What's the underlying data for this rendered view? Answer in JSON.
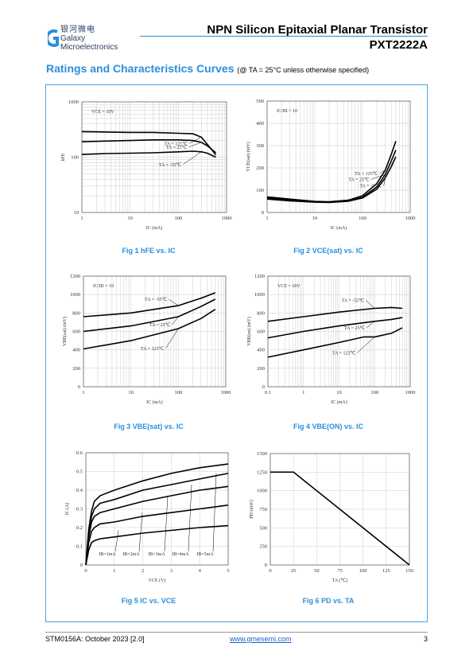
{
  "header": {
    "logo_cn": "银河微电",
    "logo_en1": "Galaxy",
    "logo_en2": "Microelectronics",
    "title": "NPN Silicon Epitaxial Planar Transistor",
    "part": "PXT2222A"
  },
  "section": {
    "title": "Ratings and Characteristics Curves",
    "condition": "(@ TA = 25°C unless otherwise specified)"
  },
  "colors": {
    "accent": "#2a8fdc",
    "frame": "#4aa3df",
    "curve": "#000000"
  },
  "captions": [
    "Fig 1   hFE vs. IC",
    "Fig 2   VCE(sat) vs. IC",
    "Fig 3   VBE(sat) vs. IC",
    "Fig 4   VBE(ON) vs. IC",
    "Fig 5   IC vs. VCE",
    "Fig 6   PD vs. TA"
  ],
  "footer": {
    "doc": "STM0156A: October 2023 [2.0]",
    "url": "www.gmesemi.com",
    "page": "3"
  },
  "chart_data": [
    {
      "type": "line",
      "xscale": "log",
      "yscale": "log",
      "xlim": [
        1,
        1000
      ],
      "ylim": [
        10,
        1000
      ],
      "xticks": [
        "1",
        "10",
        "100",
        "1000"
      ],
      "yticks": [
        "10",
        "100",
        "1000"
      ],
      "xlabel": "IC (mA)",
      "ylabel": "hFE",
      "annotations": [
        "VCE = 10V"
      ],
      "series": [
        {
          "name": "TA = 125℃",
          "x": [
            1,
            3,
            10,
            30,
            100,
            200,
            300,
            400,
            600
          ],
          "y": [
            290,
            285,
            280,
            280,
            270,
            265,
            230,
            170,
            110
          ]
        },
        {
          "name": "TA = 25℃",
          "x": [
            1,
            3,
            10,
            30,
            100,
            200,
            300,
            400,
            600
          ],
          "y": [
            190,
            195,
            200,
            205,
            205,
            200,
            185,
            160,
            120
          ]
        },
        {
          "name": "TA = -55℃",
          "x": [
            1,
            3,
            10,
            30,
            100,
            200,
            300,
            400,
            600
          ],
          "y": [
            112,
            116,
            118,
            120,
            125,
            128,
            125,
            118,
            100
          ]
        }
      ]
    },
    {
      "type": "line",
      "xscale": "log",
      "xlim": [
        1,
        1000
      ],
      "ylim": [
        0,
        500
      ],
      "xticks": [
        "1",
        "10",
        "100",
        "1000"
      ],
      "yticks": [
        "0",
        "100",
        "200",
        "300",
        "400",
        "500"
      ],
      "xlabel": "IC (mA)",
      "ylabel": "VCE(sat) (mV)",
      "annotations": [
        "IC/IB = 10"
      ],
      "series": [
        {
          "name": "TA = 125℃",
          "x": [
            1,
            3,
            10,
            20,
            50,
            100,
            200,
            300,
            400,
            500
          ],
          "y": [
            70,
            60,
            50,
            48,
            55,
            75,
            130,
            190,
            260,
            320
          ]
        },
        {
          "name": "TA = 25℃",
          "x": [
            1,
            3,
            10,
            20,
            50,
            100,
            200,
            300,
            400,
            500
          ],
          "y": [
            65,
            56,
            48,
            46,
            52,
            68,
            115,
            170,
            230,
            280
          ]
        },
        {
          "name": "TA = -55℃",
          "x": [
            1,
            3,
            10,
            20,
            50,
            100,
            200,
            300,
            400,
            500
          ],
          "y": [
            60,
            52,
            46,
            45,
            50,
            65,
            105,
            155,
            205,
            250
          ]
        }
      ]
    },
    {
      "type": "line",
      "xscale": "log",
      "xlim": [
        1,
        1000
      ],
      "ylim": [
        0,
        1200
      ],
      "xticks": [
        "1",
        "10",
        "100",
        "1000"
      ],
      "yticks": [
        "0",
        "200",
        "400",
        "600",
        "800",
        "1000",
        "1200"
      ],
      "xlabel": "IC (mA)",
      "ylabel": "VBE(sat) (mV)",
      "annotations": [
        "IC/IB = 10"
      ],
      "series": [
        {
          "name": "TA = -55℃",
          "x": [
            1,
            10,
            100,
            300,
            600
          ],
          "y": [
            760,
            800,
            880,
            960,
            1020
          ]
        },
        {
          "name": "TA = 25℃",
          "x": [
            1,
            10,
            100,
            300,
            600
          ],
          "y": [
            600,
            660,
            760,
            870,
            950
          ]
        },
        {
          "name": "TA = 125℃",
          "x": [
            1,
            10,
            100,
            300,
            600
          ],
          "y": [
            410,
            500,
            630,
            740,
            840
          ]
        }
      ]
    },
    {
      "type": "line",
      "xscale": "log",
      "xlim": [
        0.1,
        1000
      ],
      "ylim": [
        0,
        1200
      ],
      "xticks": [
        "0.1",
        "1",
        "10",
        "100",
        "1000"
      ],
      "yticks": [
        "0",
        "200",
        "400",
        "600",
        "800",
        "1000",
        "1200"
      ],
      "xlabel": "IC (mA)",
      "ylabel": "VBE(on) (mV)",
      "annotations": [
        "VCE = 10V"
      ],
      "series": [
        {
          "name": "TA = -55℃",
          "x": [
            0.1,
            1,
            10,
            100,
            300,
            600
          ],
          "y": [
            710,
            760,
            810,
            850,
            860,
            850
          ]
        },
        {
          "name": "TA = 25℃",
          "x": [
            0.1,
            1,
            10,
            100,
            300,
            600
          ],
          "y": [
            530,
            600,
            660,
            710,
            730,
            750
          ]
        },
        {
          "name": "TA = 125℃",
          "x": [
            0.1,
            1,
            10,
            50,
            100,
            300,
            600
          ],
          "y": [
            320,
            400,
            480,
            540,
            540,
            580,
            640
          ]
        }
      ]
    },
    {
      "type": "line",
      "xlim": [
        0,
        5
      ],
      "ylim": [
        0,
        0.6
      ],
      "xticks": [
        "0",
        "1",
        "2",
        "3",
        "4",
        "5"
      ],
      "yticks": [
        "0",
        "0.1",
        "0.2",
        "0.3",
        "0.4",
        "0.5",
        "0.6"
      ],
      "xlabel": "VCE (V)",
      "ylabel": "IC (A)",
      "series": [
        {
          "name": "IB=1mA",
          "x": [
            0,
            0.1,
            0.2,
            0.3,
            0.5,
            1,
            2,
            3,
            4,
            5
          ],
          "y": [
            0,
            0.08,
            0.12,
            0.13,
            0.14,
            0.15,
            0.17,
            0.185,
            0.2,
            0.21
          ]
        },
        {
          "name": "IB=2mA",
          "x": [
            0,
            0.1,
            0.2,
            0.3,
            0.5,
            1,
            2,
            3,
            4,
            5
          ],
          "y": [
            0,
            0.12,
            0.18,
            0.2,
            0.22,
            0.23,
            0.26,
            0.28,
            0.3,
            0.32
          ]
        },
        {
          "name": "IB=3mA",
          "x": [
            0,
            0.1,
            0.2,
            0.3,
            0.5,
            1,
            2,
            3,
            4,
            5
          ],
          "y": [
            0,
            0.15,
            0.23,
            0.26,
            0.28,
            0.3,
            0.34,
            0.37,
            0.4,
            0.42
          ]
        },
        {
          "name": "IB=4mA",
          "x": [
            0,
            0.1,
            0.2,
            0.3,
            0.5,
            1,
            2,
            3,
            4,
            5
          ],
          "y": [
            0,
            0.17,
            0.26,
            0.3,
            0.33,
            0.35,
            0.4,
            0.43,
            0.46,
            0.49
          ]
        },
        {
          "name": "IB=5mA",
          "x": [
            0,
            0.1,
            0.2,
            0.3,
            0.5,
            1,
            2,
            3,
            4,
            5
          ],
          "y": [
            0,
            0.19,
            0.29,
            0.34,
            0.37,
            0.4,
            0.45,
            0.49,
            0.52,
            0.54
          ]
        }
      ]
    },
    {
      "type": "line",
      "xlim": [
        0,
        150
      ],
      "ylim": [
        0,
        1500
      ],
      "xticks": [
        "0",
        "25",
        "50",
        "75",
        "100",
        "125",
        "150"
      ],
      "yticks": [
        "0",
        "250",
        "500",
        "750",
        "1000",
        "1250",
        "1500"
      ],
      "xlabel": "TA (℃)",
      "ylabel": "PD (mW)",
      "series": [
        {
          "name": "",
          "x": [
            0,
            25,
            150
          ],
          "y": [
            1250,
            1250,
            0
          ]
        }
      ]
    }
  ]
}
